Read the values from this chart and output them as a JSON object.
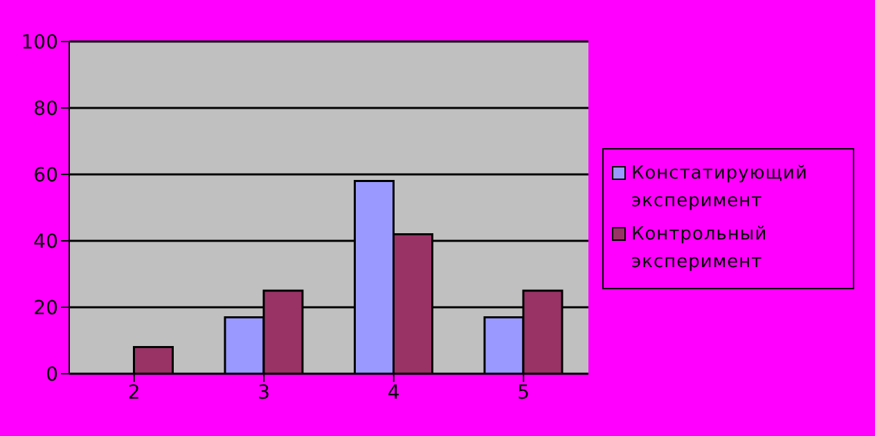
{
  "chart_data": {
    "type": "bar",
    "categories": [
      "2",
      "3",
      "4",
      "5"
    ],
    "series": [
      {
        "name": "Констатирующий эксперимент",
        "color": "#9999ff",
        "values": [
          0,
          17,
          58,
          17
        ]
      },
      {
        "name": "Контрольный эксперимент",
        "color": "#993366",
        "values": [
          8,
          25,
          42,
          25
        ]
      }
    ],
    "ylim": [
      0,
      100
    ],
    "yticks": [
      0,
      20,
      40,
      60,
      80,
      100
    ],
    "grid": "y",
    "legend": "right"
  }
}
